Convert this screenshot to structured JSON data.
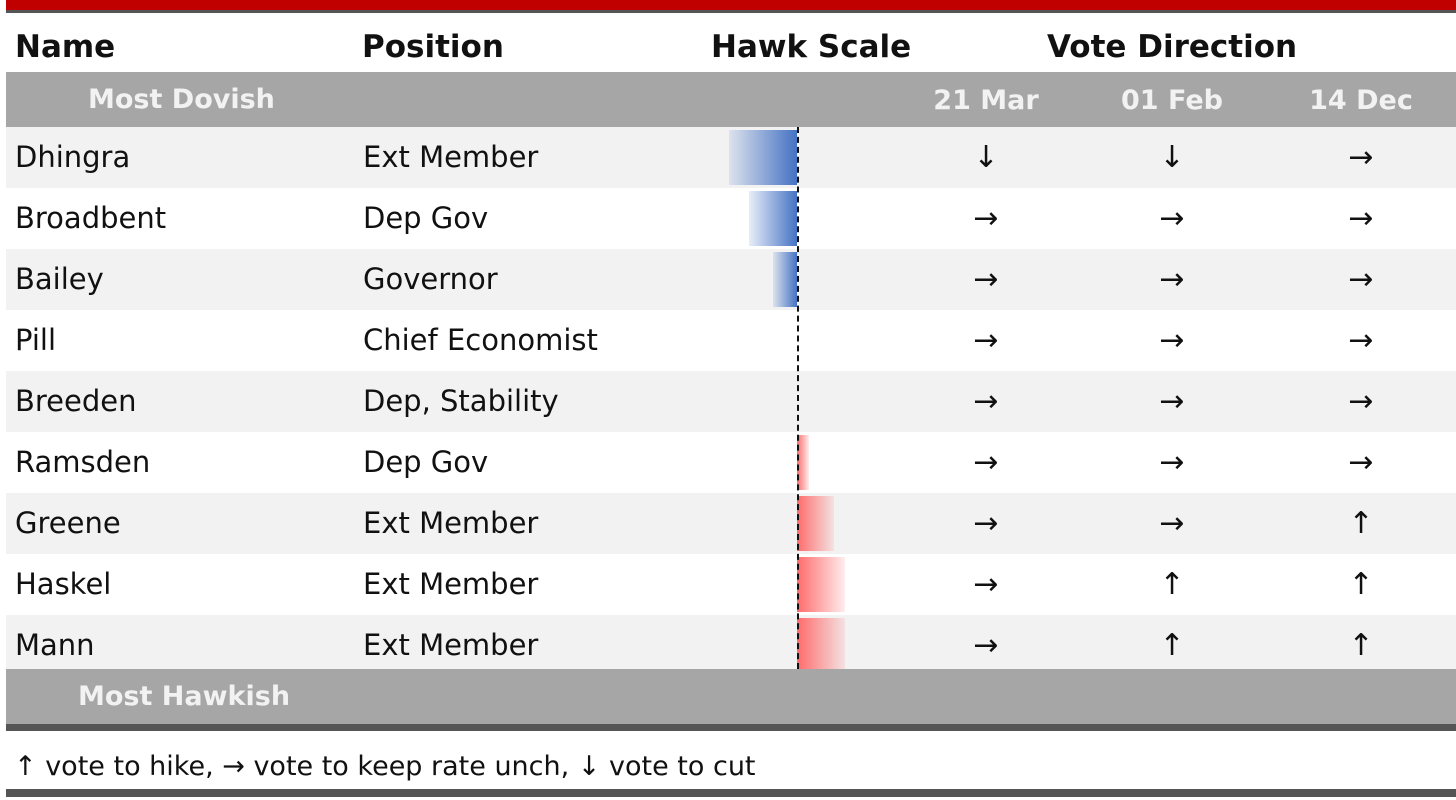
{
  "headers": {
    "name": "Name",
    "position": "Position",
    "hawk_scale": "Hawk Scale",
    "vote_direction": "Vote Direction"
  },
  "band_top": {
    "label": "Most Dovish",
    "dates": [
      "21 Mar",
      "01 Feb",
      "14 Dec"
    ]
  },
  "band_bottom": {
    "label": "Most Hawkish"
  },
  "legend": "↑ vote to hike, → vote to keep rate unch, ↓ vote to cut",
  "colors": {
    "dovish_bar": "#4472c4",
    "hawkish_bar": "#ff6b6b",
    "top_accent": "#c00000",
    "band": "#a6a6a6"
  },
  "chart_data": {
    "type": "table",
    "columns": [
      "Name",
      "Position",
      "Hawk Scale",
      "21 Mar",
      "01 Feb",
      "14 Dec"
    ],
    "rows": [
      {
        "name": "Dhingra",
        "position": "Ext Member",
        "hawk_scale": -1.0,
        "votes": [
          "↓",
          "↓",
          "→"
        ]
      },
      {
        "name": "Broadbent",
        "position": "Dep Gov",
        "hawk_scale": -0.7,
        "votes": [
          "→",
          "→",
          "→"
        ]
      },
      {
        "name": "Bailey",
        "position": "Governor",
        "hawk_scale": -0.35,
        "votes": [
          "→",
          "→",
          "→"
        ]
      },
      {
        "name": "Pill",
        "position": "Chief Economist",
        "hawk_scale": 0,
        "votes": [
          "→",
          "→",
          "→"
        ]
      },
      {
        "name": "Breeden",
        "position": "Dep, Stability",
        "hawk_scale": 0,
        "votes": [
          "→",
          "→",
          "→"
        ]
      },
      {
        "name": "Ramsden",
        "position": "Dep Gov",
        "hawk_scale": 0.18,
        "votes": [
          "→",
          "→",
          "→"
        ]
      },
      {
        "name": "Greene",
        "position": "Ext Member",
        "hawk_scale": 0.55,
        "votes": [
          "→",
          "→",
          "↑"
        ]
      },
      {
        "name": "Haskel",
        "position": "Ext Member",
        "hawk_scale": 0.7,
        "votes": [
          "→",
          "↑",
          "↑"
        ]
      },
      {
        "name": "Mann",
        "position": "Ext Member",
        "hawk_scale": 0.7,
        "votes": [
          "→",
          "↑",
          "↑"
        ]
      }
    ]
  }
}
